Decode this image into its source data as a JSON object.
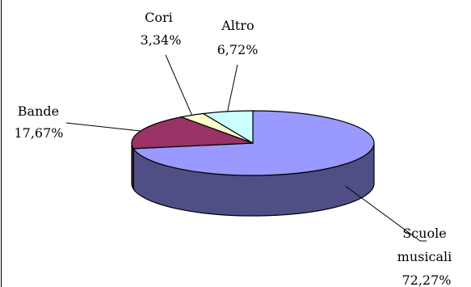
{
  "chart_data": {
    "type": "pie",
    "title": "",
    "three_d": true,
    "legend": "none",
    "start_angle_deg": 90,
    "direction": "clockwise",
    "slices": [
      {
        "label_lines": [
          "Scuole",
          "musicali"
        ],
        "value_text": "72,27%",
        "value": 72.27,
        "color": "#9999ff",
        "side_color": "#4f4f86"
      },
      {
        "label_lines": [
          "Bande"
        ],
        "value_text": "17,67%",
        "value": 17.67,
        "color": "#993366",
        "side_color": "#5e1f3f"
      },
      {
        "label_lines": [
          "Cori"
        ],
        "value_text": "3,34%",
        "value": 3.34,
        "color": "#ffffcc",
        "side_color": "#b3b38f"
      },
      {
        "label_lines": [
          "Altro"
        ],
        "value_text": "6,72%",
        "value": 6.72,
        "color": "#ccffff",
        "side_color": "#8fb3b3"
      }
    ]
  }
}
